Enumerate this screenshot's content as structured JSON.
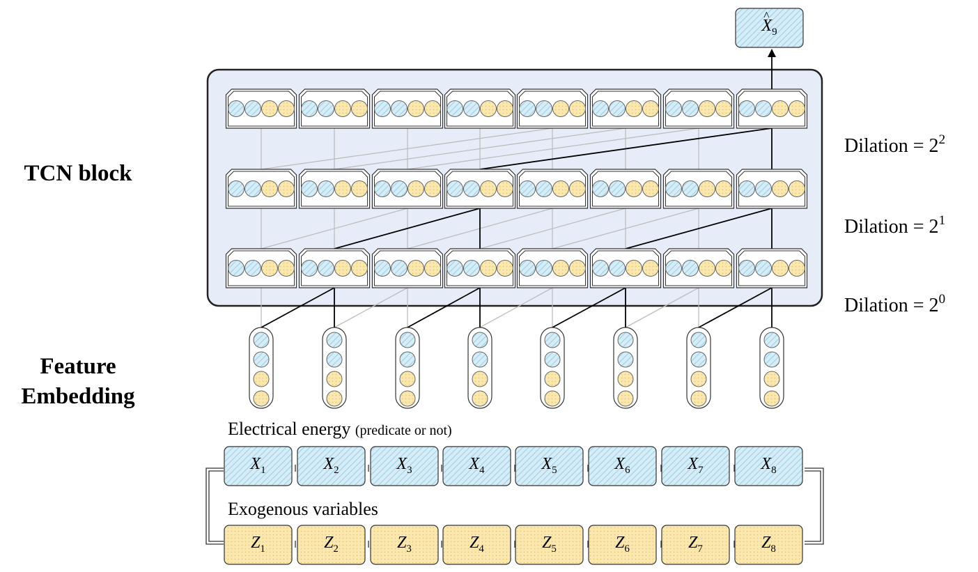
{
  "labels": {
    "tcn_block": "TCN block",
    "feature_line1": "Feature",
    "feature_line2": "Embedding",
    "electrical": "Electrical energy",
    "electrical_note": "(predicate or not)",
    "exogenous": "Exogenous variables"
  },
  "dilations": [
    {
      "text": "Dilation = 2",
      "exp": "2"
    },
    {
      "text": "Dilation = 2",
      "exp": "1"
    },
    {
      "text": "Dilation = 2",
      "exp": "0"
    }
  ],
  "x_boxes": [
    {
      "sym": "X",
      "sub": "1"
    },
    {
      "sym": "X",
      "sub": "2"
    },
    {
      "sym": "X",
      "sub": "3"
    },
    {
      "sym": "X",
      "sub": "4"
    },
    {
      "sym": "X",
      "sub": "5"
    },
    {
      "sym": "X",
      "sub": "6"
    },
    {
      "sym": "X",
      "sub": "7"
    },
    {
      "sym": "X",
      "sub": "8"
    }
  ],
  "z_boxes": [
    {
      "sym": "Z",
      "sub": "1"
    },
    {
      "sym": "Z",
      "sub": "2"
    },
    {
      "sym": "Z",
      "sub": "3"
    },
    {
      "sym": "Z",
      "sub": "4"
    },
    {
      "sym": "Z",
      "sub": "5"
    },
    {
      "sym": "Z",
      "sub": "6"
    },
    {
      "sym": "Z",
      "sub": "7"
    },
    {
      "sym": "Z",
      "sub": "8"
    }
  ],
  "output": {
    "sym": "X",
    "sub": "9"
  },
  "colors": {
    "blue_fill": "#d6ecf6",
    "blue_hatch": "#9fd0e8",
    "yellow_fill": "#fbe8b0",
    "yellow_dot": "#e8c770",
    "panel": "#e6edf9",
    "active_line": "#000000",
    "inactive_line": "#bdbdbd"
  }
}
